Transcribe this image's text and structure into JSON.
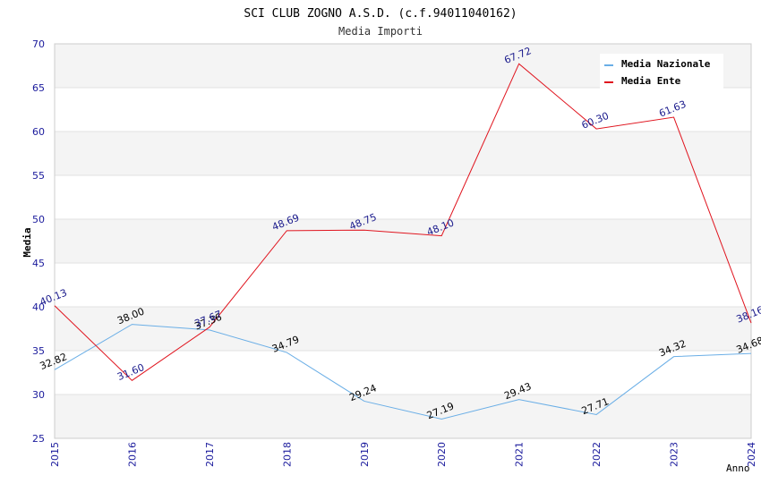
{
  "chart_data": {
    "type": "line",
    "title": "SCI CLUB ZOGNO A.S.D. (c.f.94011040162)",
    "subtitle": "Media Importi",
    "xlabel": "Anno",
    "ylabel": "Media",
    "x": [
      "2015",
      "2016",
      "2017",
      "2018",
      "2019",
      "2020",
      "2021",
      "2022",
      "2023",
      "2024"
    ],
    "ylim": [
      25,
      70
    ],
    "yticks": [
      "25",
      "30",
      "35",
      "40",
      "45",
      "50",
      "55",
      "60",
      "65",
      "70"
    ],
    "grid": true,
    "legend_position": "top-right",
    "series": [
      {
        "name": "Media Nazionale",
        "color": "#6aaee6",
        "label_color": "#000000",
        "values": [
          32.82,
          38.0,
          37.36,
          34.79,
          29.24,
          27.19,
          29.43,
          27.71,
          34.32,
          34.68
        ],
        "labels": [
          "32.82",
          "38.00",
          "37.36",
          "34.79",
          "29.24",
          "27.19",
          "29.43",
          "27.71",
          "34.32",
          "34.68"
        ]
      },
      {
        "name": "Media Ente",
        "color": "#e0141e",
        "label_color": "#1a1a8c",
        "values": [
          40.13,
          31.6,
          37.67,
          48.69,
          48.75,
          48.1,
          67.72,
          60.3,
          61.63,
          38.16
        ],
        "labels": [
          "40.13",
          "31.60",
          "37.67",
          "48.69",
          "48.75",
          "48.10",
          "67.72",
          "60.30",
          "61.63",
          "38.16"
        ]
      }
    ]
  }
}
